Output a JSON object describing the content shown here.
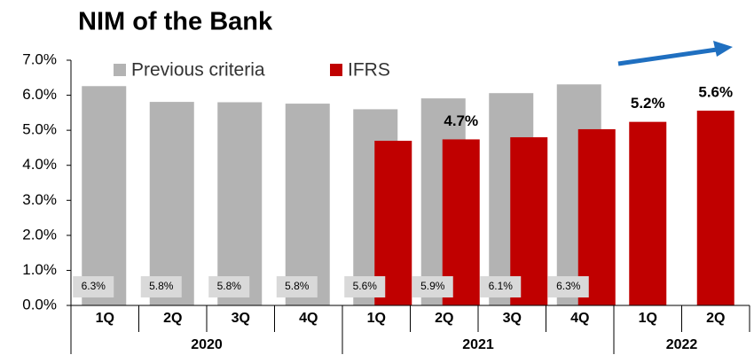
{
  "chart_data": {
    "type": "bar",
    "title": "NIM of the Bank",
    "categories": [
      "1Q",
      "2Q",
      "3Q",
      "4Q",
      "1Q",
      "2Q",
      "3Q",
      "4Q",
      "1Q",
      "2Q"
    ],
    "groups": [
      {
        "name": "2020",
        "count": 4
      },
      {
        "name": "2021",
        "count": 4
      },
      {
        "name": "2022",
        "count": 2
      }
    ],
    "series": [
      {
        "name": "Previous criteria",
        "color": "#b3b3b3",
        "values": [
          6.26,
          5.81,
          5.8,
          5.76,
          5.6,
          5.91,
          6.06,
          6.31,
          null,
          null
        ],
        "value_labels": [
          "6.3%",
          "5.8%",
          "5.8%",
          "5.8%",
          "5.6%",
          "5.9%",
          "6.1%",
          "6.3%",
          null,
          null
        ]
      },
      {
        "name": "IFRS",
        "color": "#c00000",
        "values": [
          null,
          null,
          null,
          null,
          4.7,
          4.74,
          4.8,
          5.03,
          5.24,
          5.56
        ],
        "value_labels": [
          null,
          null,
          null,
          null,
          null,
          "4.7%",
          null,
          null,
          "5.2%",
          "5.6%"
        ]
      }
    ],
    "ylim": [
      0,
      7
    ],
    "yticks": [
      {
        "value": 0,
        "label": "0.0%"
      },
      {
        "value": 1,
        "label": "1.0%"
      },
      {
        "value": 2,
        "label": "2.0%"
      },
      {
        "value": 3,
        "label": "3.0%"
      },
      {
        "value": 4,
        "label": "4.0%"
      },
      {
        "value": 5,
        "label": "5.0%"
      },
      {
        "value": 6,
        "label": "6.0%"
      },
      {
        "value": 7,
        "label": "7.0%"
      }
    ],
    "legend": "top"
  }
}
